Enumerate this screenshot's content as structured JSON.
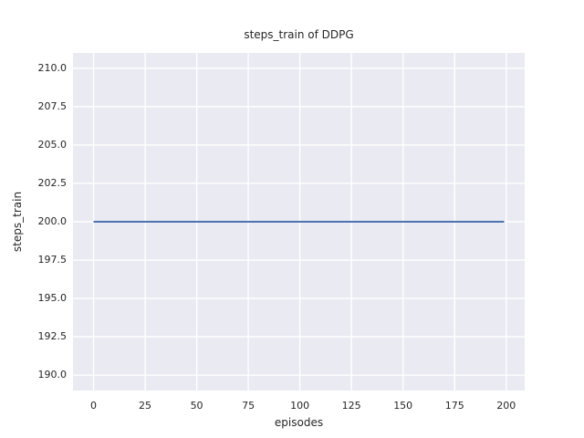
{
  "chart_data": {
    "type": "line",
    "title": "steps_train of DDPG",
    "xlabel": "episodes",
    "ylabel": "steps_train",
    "x_ticks": [
      0,
      25,
      50,
      75,
      100,
      125,
      150,
      175,
      200
    ],
    "y_tick_labels": [
      "190.0",
      "192.5",
      "195.0",
      "197.5",
      "200.0",
      "202.5",
      "205.0",
      "207.5",
      "210.0"
    ],
    "xlim": [
      -9.95,
      208.95
    ],
    "ylim": [
      189,
      211
    ],
    "grid": true,
    "legend": false,
    "style": {
      "plot_background": "#eaeaf2",
      "grid_color": "#ffffff",
      "text_color": "#262626"
    },
    "series": [
      {
        "name": "steps_train",
        "color": "#4c72b0",
        "x": [
          0,
          199
        ],
        "y": [
          200,
          200
        ],
        "note": "constant value 200 for every episode from 0 to 199"
      }
    ]
  }
}
